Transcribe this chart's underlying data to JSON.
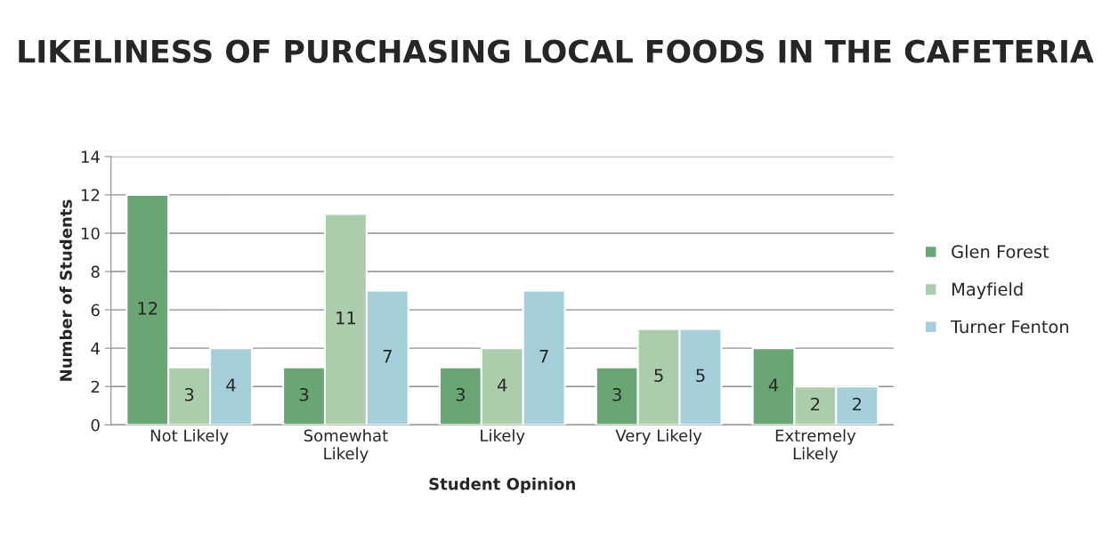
{
  "chart_data": {
    "type": "bar",
    "title": "LIKELINESS OF PURCHASING LOCAL FOODS IN THE CAFETERIA",
    "xlabel": "Student Opinion",
    "ylabel": "Number of Students",
    "categories": [
      "Not Likely",
      "Somewhat\nLikely",
      "Likely",
      "Very Likely",
      "Extremely\nLikely"
    ],
    "series": [
      {
        "name": "Glen Forest",
        "color": "#6aa673",
        "values": [
          12,
          3,
          3,
          3,
          4
        ]
      },
      {
        "name": "Mayfield",
        "color": "#abcdab",
        "values": [
          3,
          11,
          4,
          5,
          2
        ]
      },
      {
        "name": "Turner Fenton",
        "color": "#a7cfdb",
        "values": [
          4,
          7,
          7,
          5,
          2
        ]
      }
    ],
    "ylim": [
      0,
      14
    ],
    "yticks": [
      0,
      2,
      4,
      6,
      8,
      10,
      12,
      14
    ],
    "grid": "y",
    "legend": "right",
    "data_labels": true
  }
}
